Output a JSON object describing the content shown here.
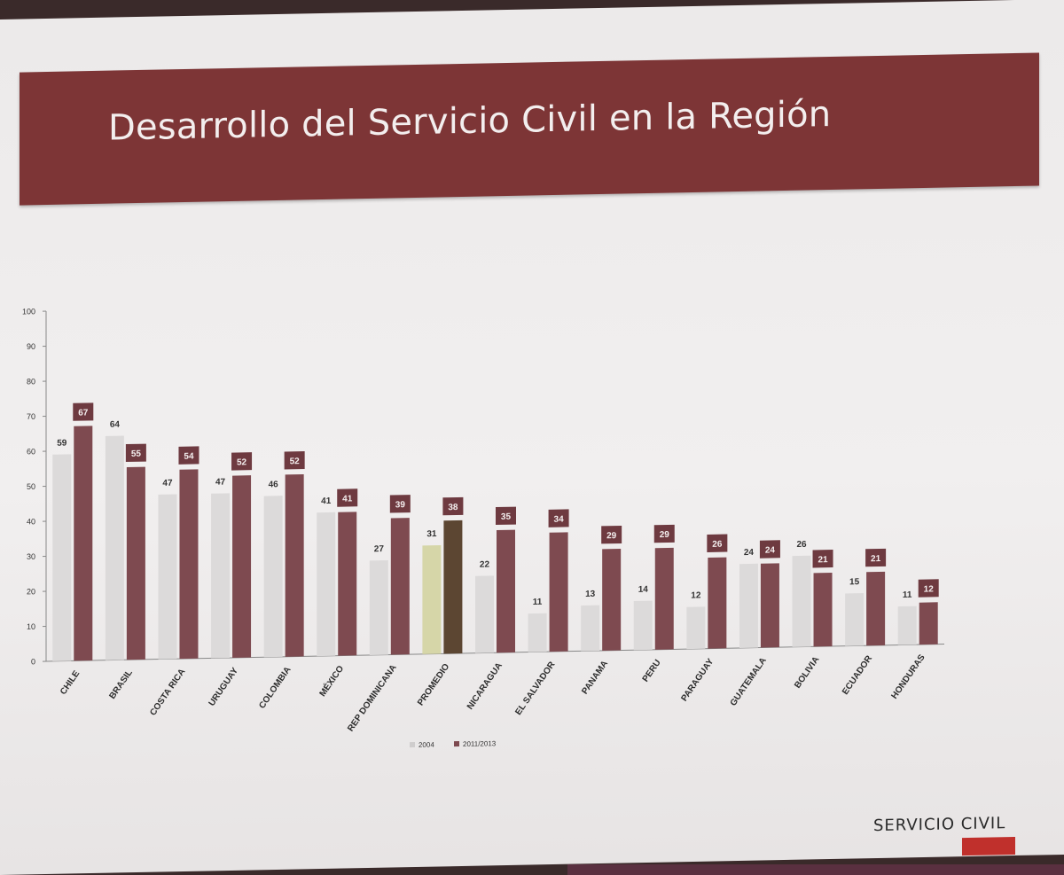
{
  "slide": {
    "title": "Desarrollo del Servicio Civil en la Región",
    "brand": "SERVICIO CIVIL"
  },
  "chart_data": {
    "type": "bar",
    "categories": [
      "CHILE",
      "BRASIL",
      "COSTA RICA",
      "URUGUAY",
      "COLOMBIA",
      "MÉXICO",
      "REP DOMINICANA",
      "PROMEDIO",
      "NICARAGUA",
      "EL SALVADOR",
      "PANAMA",
      "PERU",
      "PARAGUAY",
      "GUATEMALA",
      "BOLIVIA",
      "ECUADOR",
      "HONDURAS"
    ],
    "series": [
      {
        "name": "2004",
        "color": "#dcdada",
        "values": [
          59,
          64,
          47,
          47,
          46,
          41,
          27,
          31,
          22,
          11,
          13,
          14,
          12,
          24,
          26,
          15,
          11
        ]
      },
      {
        "name": "2011/2013",
        "color": "#7e4a50",
        "values": [
          67,
          55,
          54,
          52,
          52,
          41,
          39,
          38,
          35,
          34,
          29,
          29,
          26,
          24,
          21,
          21,
          12
        ]
      }
    ],
    "highlight": {
      "category": "PROMEDIO",
      "colors": [
        "#d6d6a8",
        "#5c4632"
      ]
    },
    "ylim": [
      0,
      100
    ],
    "yticks": [
      0,
      10,
      20,
      30,
      40,
      50,
      60,
      70,
      80,
      90,
      100
    ],
    "grid": false,
    "legend_position": "bottom"
  }
}
